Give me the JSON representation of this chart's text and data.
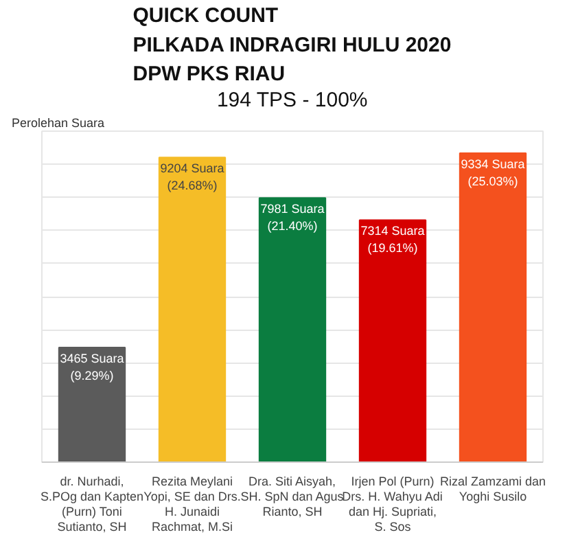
{
  "chart_data": {
    "type": "bar",
    "title": "QUICK COUNT\nPILKADA INDRAGIRI HULU 2020\nDPW PKS RIAU",
    "subtitle": "194 TPS - 100%",
    "annotations": [
      "Perolehan Suara"
    ],
    "categories": [
      "dr. Nurhadi, S.POg dan Kapten (Purn) Toni Sutianto, SH",
      "Rezita Meylani Yopi, SE dan Drs. H. Junaidi Rachmat, M.Si",
      "Dra. Siti Aisyah, SH. SpN dan Agus Rianto, SH",
      "Irjen Pol (Purn) Drs. H. Wahyu Adi dan Hj. Supriati, S. Sos",
      "Rizal Zamzami dan Yoghi Susilo"
    ],
    "values": [
      3465,
      9204,
      7981,
      7314,
      9334
    ],
    "colors": [
      "#5b5b5b",
      "#f5bd27",
      "#0b7d40",
      "#d60000",
      "#f4511e"
    ],
    "value_labels": [
      "3465 Suara\n(9.29%)",
      "9204 Suara\n(24.68%)",
      "7981 Suara\n(21.40%)",
      "7314 Suara\n(19.61%)",
      "9334 Suara\n(25.03%)"
    ],
    "ylim": [
      0,
      10000
    ],
    "yticks": [
      {
        "value": 0,
        "label": null
      },
      {
        "value": 1000,
        "label": null
      },
      {
        "value": 2000,
        "label": null
      },
      {
        "value": 3000,
        "label": null
      },
      {
        "value": 4000,
        "label": null
      },
      {
        "value": 5000,
        "label": null
      },
      {
        "value": 6000,
        "label": null
      },
      {
        "value": 7000,
        "label": null
      },
      {
        "value": 8000,
        "label": null
      },
      {
        "value": 9000,
        "label": null
      },
      {
        "value": 10000,
        "label": null
      }
    ],
    "grid": "y",
    "tick_labels": "x"
  }
}
